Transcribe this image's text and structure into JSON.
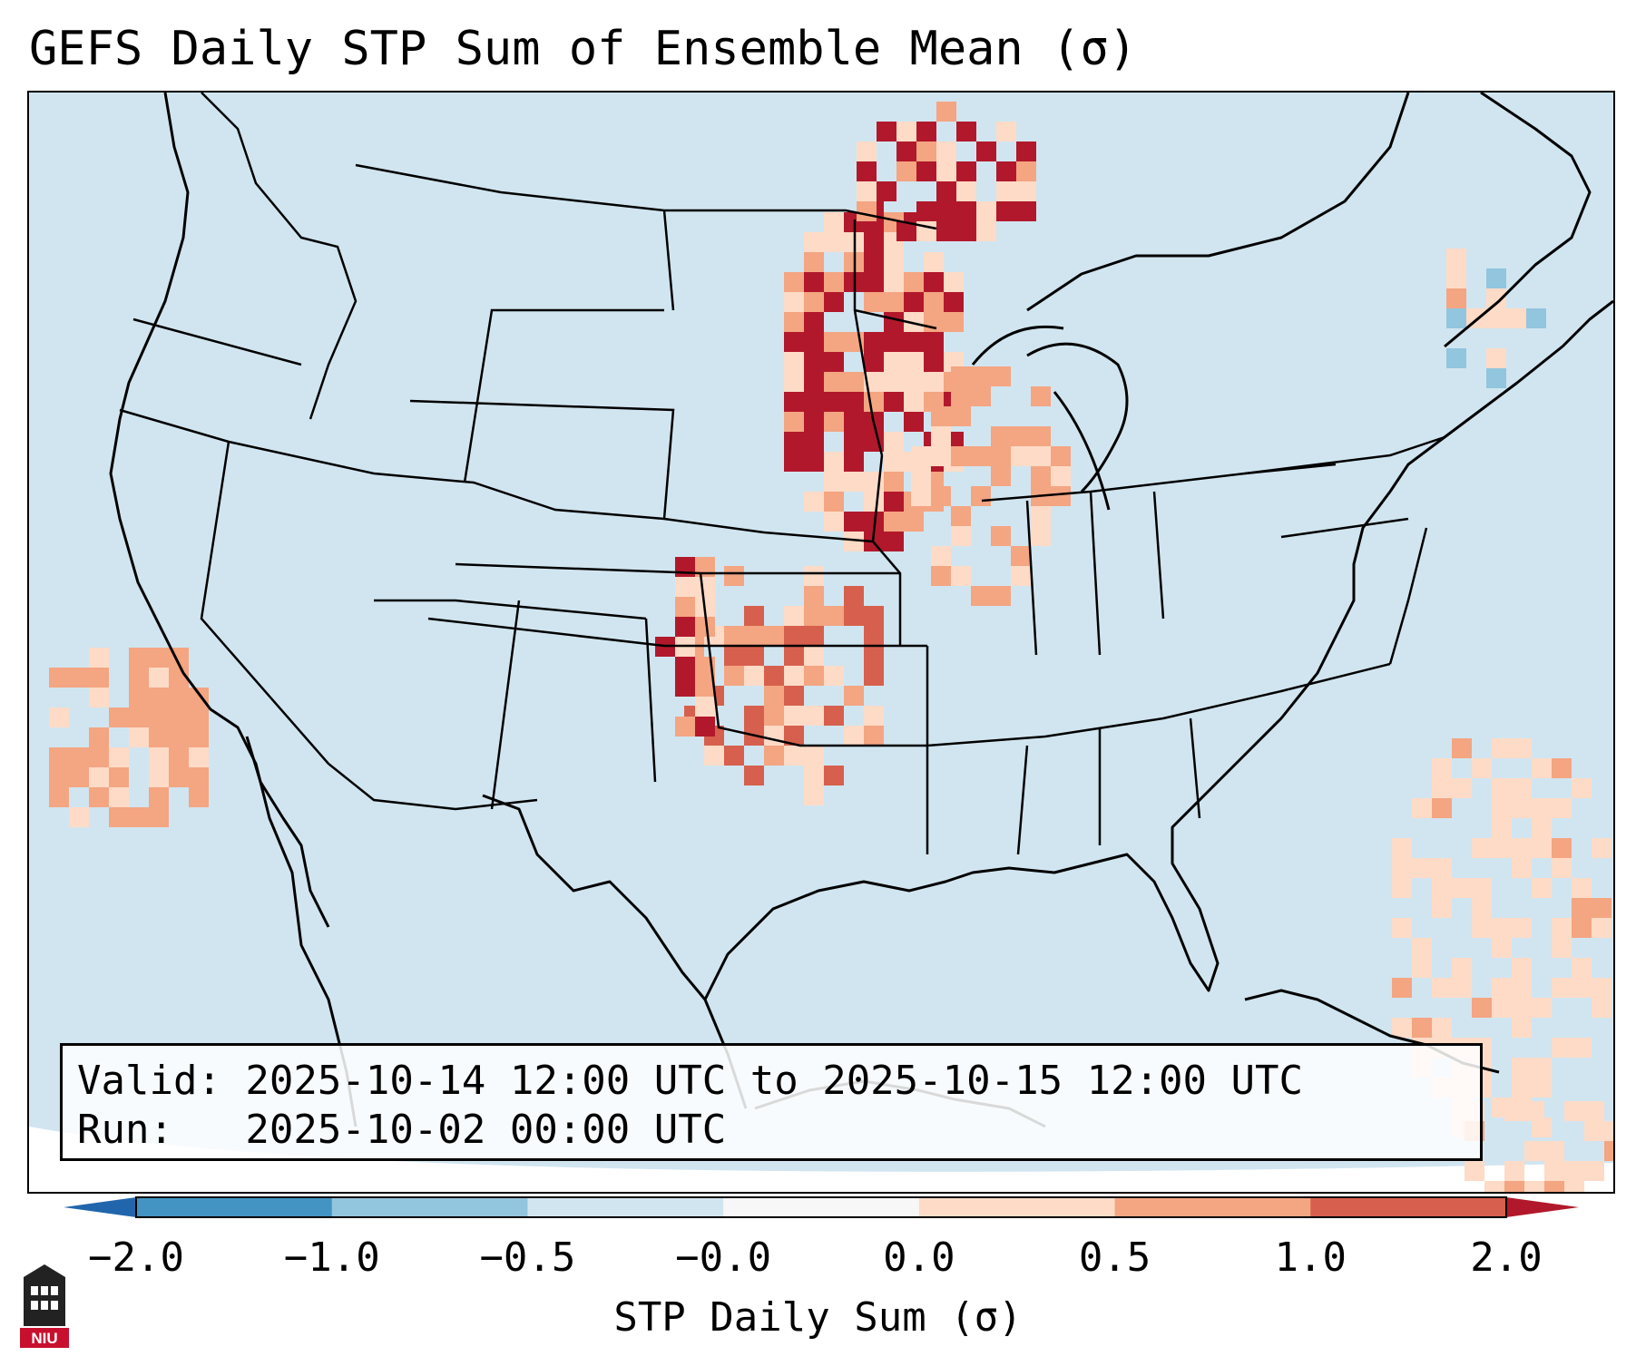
{
  "title": "GEFS Daily STP Sum of Ensemble Mean (σ)",
  "info": {
    "valid": "Valid: 2025-10-14 12:00 UTC to 2025-10-15 12:00 UTC",
    "run": "Run:   2025-10-02 00:00 UTC"
  },
  "colorbar": {
    "label": "STP Daily Sum (σ)",
    "ticks": [
      "−2.0",
      "−1.0",
      "−0.5",
      "−0.0",
      "0.0",
      "0.5",
      "1.0",
      "2.0"
    ],
    "bins": [
      {
        "from": "-2.0",
        "to": "-1.0",
        "color": "#4393c3"
      },
      {
        "from": "-1.0",
        "to": "-0.5",
        "color": "#92c5de"
      },
      {
        "from": "-0.5",
        "to": "-0.0",
        "color": "#d1e5f0"
      },
      {
        "from": "-0.0",
        "to": "0.0",
        "color": "#f7f7f7"
      },
      {
        "from": "0.0",
        "to": "0.5",
        "color": "#fddbc7"
      },
      {
        "from": "0.5",
        "to": "1.0",
        "color": "#f4a582"
      },
      {
        "from": "1.0",
        "to": "2.0",
        "color": "#d6604d"
      }
    ],
    "under_color": "#2166ac",
    "over_color": "#b2182b"
  },
  "map": {
    "projection": "Lambert Conformal",
    "region": "Continental United States",
    "background_color": "#d1e5f0",
    "anomaly_regions": [
      {
        "name": "Upper Midwest (MN / eastern Dakotas)",
        "level": "over 2.0",
        "color": "#b2182b"
      },
      {
        "name": "Central Plains (NE / KS / OK)",
        "level": "1.0 to 2.0",
        "color": "#d6604d"
      },
      {
        "name": "Wisconsin / Iowa",
        "level": "0.5 to 1.0",
        "color": "#f4a582"
      },
      {
        "name": "Eastern Colorado front range",
        "level": "over 2.0",
        "color": "#b2182b"
      },
      {
        "name": "Pacific off California",
        "level": "0.5 to 1.0",
        "color": "#f4a582"
      },
      {
        "name": "Western Atlantic / Caribbean",
        "level": "0.0 to 0.5",
        "color": "#fddbc7"
      },
      {
        "name": "Northeast Canada",
        "level": "-1.0 to -0.5",
        "color": "#92c5de"
      }
    ]
  },
  "logo": {
    "text": "NIU",
    "color": "#c8102e"
  }
}
